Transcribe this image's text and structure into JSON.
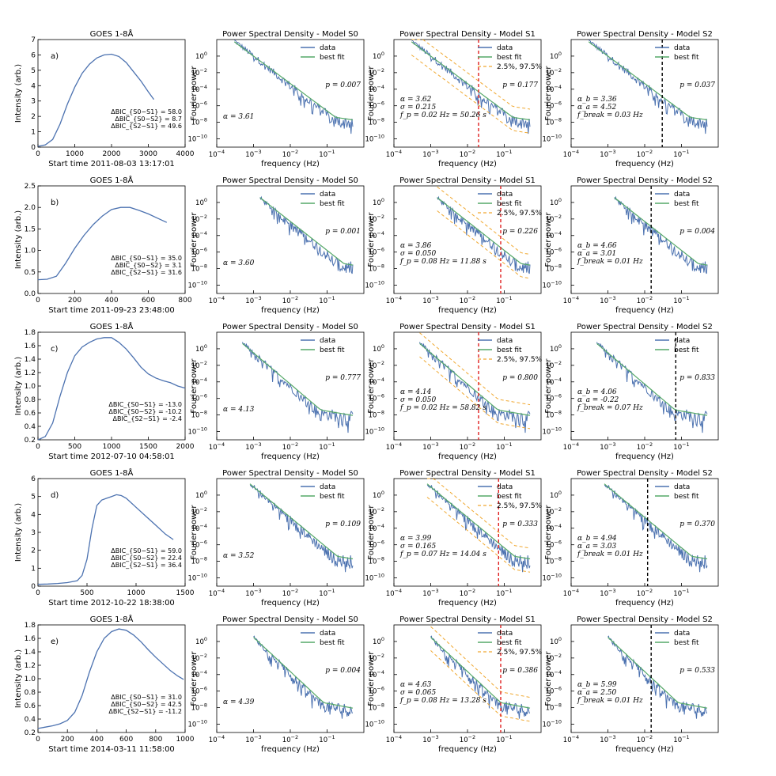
{
  "figure": {
    "intensity_ylabel": "Intensity (arb.)",
    "freq_xlabel": "frequency (Hz)",
    "power_ylabel": "Fourier power",
    "legend_data": "data",
    "legend_fit": "best fit",
    "legend_ci": "2.5%, 97.5%",
    "colors": {
      "data": "#4c72b0",
      "fit": "#55a868",
      "ci": "#f0a830",
      "red": "#e02020",
      "black": "#000000"
    }
  },
  "chart_data": [
    {
      "row": "a)",
      "goes": {
        "type": "line",
        "title": "GOES 1-8Å",
        "xlabel": "Start time 2011-08-03 13:17:01",
        "xlim": [
          0,
          4000
        ],
        "ylim": [
          0,
          7
        ],
        "xticks": [
          "0",
          "1000",
          "2000",
          "3000",
          "4000"
        ],
        "yticks": [
          "0",
          "1",
          "2",
          "3",
          "4",
          "5",
          "6",
          "7"
        ],
        "x": [
          0,
          200,
          400,
          600,
          800,
          1000,
          1200,
          1400,
          1600,
          1800,
          2000,
          2200,
          2400,
          2600,
          2800,
          3000,
          3150
        ],
        "y": [
          0.05,
          0.15,
          0.5,
          1.5,
          2.8,
          3.9,
          4.8,
          5.4,
          5.8,
          6.0,
          6.05,
          5.9,
          5.5,
          4.9,
          4.3,
          3.6,
          3.1
        ],
        "dbic": [
          "ΔBIC_{S0−S1} = 58.0",
          "ΔBIC_{S0−S2} = 8.7",
          "ΔBIC_{S2−S1} = 49.6"
        ]
      },
      "s0": {
        "title": "Power Spectral Density - Model S0",
        "p": "p = 0.007",
        "params": [
          "α = 3.61"
        ]
      },
      "s1": {
        "title": "Power Spectral Density - Model S1",
        "p": "p = 0.177",
        "params": [
          "α = 3.62",
          "σ = 0.215",
          "f_p = 0.02 Hz = 50.26 s"
        ],
        "marker_hz": 0.02
      },
      "s2": {
        "title": "Power Spectral Density - Model S2",
        "p": "p = 0.037",
        "params": [
          "α_b = 3.36",
          "α_a = 4.52",
          "f_break = 0.03 Hz"
        ],
        "marker_hz": 0.03
      },
      "psd": {
        "f_start": 0.0003,
        "slope": 3.6,
        "logp_at_1e3": 0.0
      }
    },
    {
      "row": "b)",
      "goes": {
        "type": "line",
        "title": "GOES 1-8Å",
        "xlabel": "Start time 2011-09-23 23:48:00",
        "xlim": [
          0,
          800
        ],
        "ylim": [
          0,
          2.5
        ],
        "xticks": [
          "0",
          "200",
          "400",
          "600",
          "800"
        ],
        "yticks": [
          "0.0",
          "0.5",
          "1.0",
          "1.5",
          "2.0",
          "2.5"
        ],
        "x": [
          0,
          50,
          100,
          150,
          200,
          250,
          300,
          350,
          400,
          450,
          500,
          550,
          600,
          650,
          700
        ],
        "y": [
          0.32,
          0.33,
          0.4,
          0.7,
          1.05,
          1.35,
          1.6,
          1.8,
          1.95,
          2.0,
          2.0,
          1.93,
          1.85,
          1.75,
          1.65
        ],
        "dbic": [
          "ΔBIC_{S0−S1} = 35.0",
          "ΔBIC_{S0−S2} = 3.1",
          "ΔBIC_{S2−S1} = 31.6"
        ]
      },
      "s0": {
        "title": "Power Spectral Density - Model S0",
        "p": "p = 0.001",
        "params": [
          "α = 3.60"
        ]
      },
      "s1": {
        "title": "Power Spectral Density - Model S1",
        "p": "p = 0.226",
        "params": [
          "α = 3.86",
          "σ = 0.050",
          "f_p = 0.08 Hz = 11.88 s"
        ],
        "marker_hz": 0.08
      },
      "s2": {
        "title": "Power Spectral Density - Model S2",
        "p": "p = 0.004",
        "params": [
          "α_b = 4.66",
          "α_a = 3.01",
          "f_break = 0.01 Hz"
        ],
        "marker_hz": 0.015
      },
      "psd": {
        "f_start": 0.0015,
        "slope": 3.8,
        "logp_at_1e3": 1.2
      }
    },
    {
      "row": "c)",
      "goes": {
        "type": "line",
        "title": "GOES 1-8Å",
        "xlabel": "Start time 2012-07-10 04:58:01",
        "xlim": [
          0,
          2000
        ],
        "ylim": [
          0.2,
          1.8
        ],
        "xticks": [
          "0",
          "500",
          "1000",
          "1500",
          "2000"
        ],
        "yticks": [
          "0.2",
          "0.4",
          "0.6",
          "0.8",
          "1.0",
          "1.2",
          "1.4",
          "1.6",
          "1.8"
        ],
        "x": [
          0,
          100,
          200,
          300,
          400,
          500,
          600,
          700,
          800,
          900,
          1000,
          1100,
          1200,
          1300,
          1400,
          1500,
          1600,
          1700,
          1800,
          1900,
          2000
        ],
        "y": [
          0.2,
          0.25,
          0.45,
          0.85,
          1.2,
          1.45,
          1.58,
          1.65,
          1.7,
          1.72,
          1.72,
          1.65,
          1.55,
          1.42,
          1.28,
          1.18,
          1.12,
          1.08,
          1.05,
          1.0,
          0.97
        ],
        "dbic": [
          "ΔBIC_{S0−S1} = -13.0",
          "ΔBIC_{S0−S2} = -10.2",
          "ΔBIC_{S2−S1} = -2.4"
        ]
      },
      "s0": {
        "title": "Power Spectral Density - Model S0",
        "p": "p = 0.777",
        "params": [
          "α = 4.13"
        ]
      },
      "s1": {
        "title": "Power Spectral Density - Model S1",
        "p": "p = 0.800",
        "params": [
          "α = 4.14",
          "σ = 0.050",
          "f_p = 0.02 Hz = 58.82 s"
        ],
        "marker_hz": 0.02
      },
      "s2": {
        "title": "Power Spectral Density - Model S2",
        "p": "p = 0.833",
        "params": [
          "α_b = 4.06",
          "α_a = -0.22",
          "f_break = 0.07 Hz"
        ],
        "marker_hz": 0.07
      },
      "psd": {
        "f_start": 0.0005,
        "slope": 4.1,
        "logp_at_1e3": -0.5
      }
    },
    {
      "row": "d)",
      "goes": {
        "type": "line",
        "title": "GOES 1-8Å",
        "xlabel": "Start time 2012-10-22 18:38:00",
        "xlim": [
          0,
          1500
        ],
        "ylim": [
          0,
          6
        ],
        "xticks": [
          "0",
          "500",
          "1000",
          "1500"
        ],
        "yticks": [
          "0",
          "1",
          "2",
          "3",
          "4",
          "5",
          "6"
        ],
        "x": [
          0,
          100,
          200,
          300,
          400,
          450,
          500,
          550,
          600,
          650,
          700,
          750,
          800,
          850,
          900,
          1000,
          1100,
          1200,
          1300,
          1380
        ],
        "y": [
          0.1,
          0.12,
          0.15,
          0.2,
          0.3,
          0.6,
          1.5,
          3.2,
          4.5,
          4.8,
          4.9,
          5.0,
          5.1,
          5.05,
          4.9,
          4.4,
          3.9,
          3.4,
          2.9,
          2.6
        ],
        "dbic": [
          "ΔBIC_{S0−S1} = 59.0",
          "ΔBIC_{S0−S2} = 22.4",
          "ΔBIC_{S2−S1} = 36.4"
        ]
      },
      "s0": {
        "title": "Power Spectral Density - Model S0",
        "p": "p = 0.109",
        "params": [
          "α = 3.52"
        ]
      },
      "s1": {
        "title": "Power Spectral Density - Model S1",
        "p": "p = 0.333",
        "params": [
          "α = 3.99",
          "σ = 0.165",
          "f_p = 0.07 Hz = 14.04 s"
        ],
        "marker_hz": 0.07
      },
      "s2": {
        "title": "Power Spectral Density - Model S2",
        "p": "p = 0.370",
        "params": [
          "α_b = 4.94",
          "α_a = 3.03",
          "f_break = 0.01 Hz"
        ],
        "marker_hz": 0.012
      },
      "psd": {
        "f_start": 0.0008,
        "slope": 4.0,
        "logp_at_1e3": 1.0
      }
    },
    {
      "row": "e)",
      "goes": {
        "type": "line",
        "title": "GOES 1-8Å",
        "xlabel": "Start time 2014-03-11 11:58:00",
        "xlim": [
          0,
          1000
        ],
        "ylim": [
          0.2,
          1.8
        ],
        "xticks": [
          "0",
          "200",
          "400",
          "600",
          "800",
          "1000"
        ],
        "yticks": [
          "0.2",
          "0.4",
          "0.6",
          "0.8",
          "1.0",
          "1.2",
          "1.4",
          "1.6",
          "1.8"
        ],
        "x": [
          0,
          50,
          100,
          150,
          200,
          250,
          300,
          350,
          400,
          450,
          500,
          550,
          600,
          650,
          700,
          750,
          800,
          850,
          900,
          950,
          990
        ],
        "y": [
          0.26,
          0.28,
          0.3,
          0.33,
          0.38,
          0.5,
          0.75,
          1.1,
          1.4,
          1.6,
          1.7,
          1.74,
          1.72,
          1.65,
          1.55,
          1.43,
          1.32,
          1.22,
          1.12,
          1.04,
          0.99
        ],
        "dbic": [
          "ΔBIC_{S0−S1} = 31.0",
          "ΔBIC_{S0−S2} = 42.5",
          "ΔBIC_{S2−S1} = -11.2"
        ]
      },
      "s0": {
        "title": "Power Spectral Density - Model S0",
        "p": "p = 0.004",
        "params": [
          "α = 4.39"
        ]
      },
      "s1": {
        "title": "Power Spectral Density - Model S1",
        "p": "p = 0.386",
        "params": [
          "α = 4.63",
          "σ = 0.065",
          "f_p = 0.08 Hz = 13.28 s"
        ],
        "marker_hz": 0.08
      },
      "s2": {
        "title": "Power Spectral Density - Model S2",
        "p": "p = 0.533",
        "params": [
          "α_b = 5.99",
          "α_a = 2.50",
          "f_break = 0.01 Hz"
        ],
        "marker_hz": 0.015
      },
      "psd": {
        "f_start": 0.001,
        "slope": 4.5,
        "logp_at_1e3": 0.5
      }
    }
  ]
}
